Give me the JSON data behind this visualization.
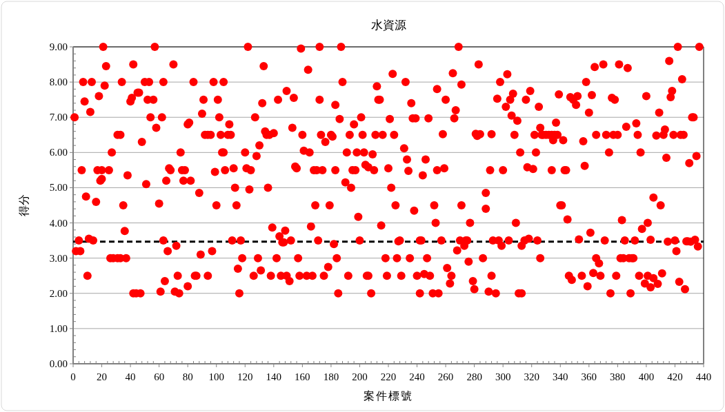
{
  "chart_data": {
    "type": "scatter",
    "title": "水資源",
    "xlabel": "案件標號",
    "ylabel": "得分",
    "series": [
      {
        "color": "#ff0000",
        "x": [
          1,
          2,
          4,
          5,
          6,
          7,
          8,
          9,
          10,
          11,
          12,
          13,
          14,
          16,
          17,
          18,
          19,
          20,
          20,
          21,
          22,
          23,
          25,
          27,
          26,
          28,
          31,
          33,
          31,
          33,
          34,
          35,
          36,
          37,
          38,
          40,
          41,
          42,
          42,
          44,
          45,
          46,
          47,
          48,
          50,
          51,
          52,
          53,
          54,
          56,
          57,
          58,
          60,
          61,
          62,
          63,
          64,
          63,
          65,
          66,
          67,
          68,
          70,
          71,
          72,
          73,
          74,
          75,
          76,
          78,
          77,
          80,
          81,
          80,
          82,
          84,
          85,
          86,
          88,
          89,
          90,
          91,
          92,
          94,
          94,
          96,
          97,
          98,
          99,
          100,
          101,
          102,
          103,
          104,
          105,
          105,
          106,
          108,
          109,
          110,
          111,
          112,
          113,
          114,
          115,
          116,
          117,
          118,
          120,
          121,
          122,
          123,
          124,
          126,
          127,
          128,
          129,
          130,
          131,
          132,
          133,
          134,
          135,
          136,
          137,
          138,
          139,
          140,
          142,
          143,
          144,
          145,
          146,
          147,
          148,
          149,
          149,
          151,
          152,
          153,
          154,
          155,
          156,
          157,
          158,
          159,
          160,
          161,
          163,
          164,
          165,
          166,
          167,
          168,
          169,
          170,
          171,
          172,
          172,
          173,
          174,
          175,
          176,
          178,
          179,
          180,
          181,
          182,
          183,
          183,
          184,
          185,
          186,
          187,
          188,
          190,
          191,
          192,
          193,
          194,
          195,
          196,
          197,
          198,
          199,
          200,
          201,
          202,
          203,
          204,
          205,
          206,
          206,
          208,
          209,
          210,
          211,
          212,
          213,
          214,
          215,
          216,
          218,
          219,
          220,
          221,
          222,
          223,
          224,
          225,
          226,
          227,
          228,
          229,
          231,
          232,
          233,
          234,
          235,
          236,
          237,
          238,
          239,
          240,
          242,
          243,
          242,
          244,
          245,
          246,
          247,
          248,
          249,
          251,
          252,
          253,
          254,
          254,
          255,
          257,
          258,
          259,
          260,
          261,
          263,
          264,
          265,
          266,
          267,
          268,
          269,
          270,
          271,
          271,
          273,
          274,
          275,
          276,
          277,
          279,
          280,
          281,
          282,
          283,
          284,
          286,
          288,
          288,
          290,
          291,
          292,
          292,
          293,
          295,
          296,
          297,
          298,
          299,
          300,
          302,
          303,
          304,
          305,
          306,
          307,
          308,
          309,
          310,
          311,
          312,
          313,
          315,
          313,
          316,
          317,
          318,
          319,
          321,
          322,
          323,
          324,
          325,
          326,
          326,
          327,
          328,
          330,
          332,
          334,
          336,
          338,
          335,
          337,
          342,
          339,
          334,
          343,
          344,
          340,
          341,
          345,
          347,
          349,
          351,
          352,
          353,
          346,
          348,
          355,
          356,
          357,
          358,
          360,
          361,
          362,
          364,
          365,
          359,
          363,
          365,
          367,
          368,
          370,
          371,
          372,
          374,
          375,
          376,
          378,
          377,
          379,
          380,
          381,
          383,
          382,
          384,
          385,
          386,
          387,
          388,
          389,
          390,
          391,
          392,
          393,
          394,
          395,
          396,
          397,
          399,
          400,
          401,
          401,
          403,
          403,
          405,
          405,
          407,
          408,
          409,
          410,
          411,
          412,
          413,
          414,
          415,
          416,
          417,
          418,
          419,
          420,
          421,
          422,
          423,
          424,
          425,
          426,
          427,
          428,
          429,
          430,
          431,
          432,
          433,
          434,
          435,
          436,
          437
        ],
        "values": [
          7.0,
          3.2,
          3.5,
          3.2,
          5.5,
          8.0,
          7.45,
          4.75,
          2.5,
          3.55,
          7.15,
          8.0,
          3.5,
          4.6,
          5.5,
          7.6,
          5.2,
          5.5,
          5.25,
          9.0,
          7.9,
          8.45,
          5.5,
          6.0,
          3.0,
          3.0,
          3.0,
          3.0,
          6.5,
          6.5,
          8.0,
          4.5,
          3.77,
          3.0,
          5.35,
          7.45,
          7.55,
          8.5,
          2.0,
          2.0,
          7.7,
          7.7,
          2.0,
          6.3,
          8.0,
          5.1,
          7.5,
          8.0,
          7.0,
          7.5,
          9.0,
          6.7,
          4.55,
          2.05,
          7.0,
          3.5,
          2.35,
          8.0,
          5.2,
          3.2,
          5.55,
          5.5,
          8.5,
          2.05,
          3.35,
          2.5,
          2.0,
          6.0,
          5.5,
          5.5,
          5.2,
          6.8,
          6.85,
          2.2,
          5.2,
          8.0,
          2.5,
          2.5,
          4.85,
          3.1,
          7.1,
          7.5,
          6.5,
          6.5,
          2.5,
          6.5,
          3.2,
          8.0,
          5.45,
          4.5,
          7.5,
          7.0,
          6.5,
          6.0,
          8.0,
          6.0,
          5.5,
          6.5,
          6.8,
          6.5,
          3.5,
          5.55,
          5.0,
          4.5,
          2.7,
          2.0,
          3.5,
          3.0,
          6.0,
          5.55,
          9.0,
          4.95,
          5.5,
          2.5,
          7.0,
          5.9,
          3.0,
          6.2,
          2.65,
          7.4,
          8.45,
          6.6,
          6.5,
          5.0,
          6.5,
          2.5,
          3.87,
          6.55,
          3.0,
          7.5,
          3.62,
          2.5,
          3.45,
          3.45,
          3.78,
          2.5,
          7.75,
          2.35,
          3.5,
          6.7,
          7.55,
          5.6,
          5.55,
          3.0,
          2.5,
          8.95,
          6.5,
          6.05,
          2.5,
          8.35,
          6.0,
          3.9,
          2.5,
          5.5,
          4.5,
          5.5,
          3.5,
          7.5,
          9.0,
          6.5,
          5.5,
          2.5,
          6.3,
          2.75,
          4.5,
          6.5,
          6.45,
          3.4,
          5.5,
          7.35,
          3.0,
          2.0,
          6.95,
          9.0,
          8.0,
          5.15,
          6.0,
          2.5,
          6.5,
          5.0,
          5.5,
          6.8,
          5.5,
          6.0,
          4.17,
          3.5,
          7.0,
          6.5,
          6.0,
          5.65,
          2.5,
          2.5,
          5.58,
          2.0,
          5.95,
          5.5,
          6.5,
          7.88,
          7.5,
          7.5,
          3.93,
          6.5,
          3.0,
          2.5,
          5.55,
          6.95,
          5.0,
          8.23,
          6.5,
          4.5,
          3.0,
          3.48,
          3.5,
          2.5,
          6.12,
          8.0,
          5.8,
          5.48,
          3.0,
          7.4,
          6.97,
          4.35,
          6.97,
          2.5,
          3.5,
          3.5,
          2.0,
          5.35,
          2.55,
          5.8,
          3.0,
          6.97,
          2.5,
          2.0,
          4.5,
          4.0,
          5.5,
          7.8,
          2.0,
          3.5,
          6.52,
          5.55,
          7.5,
          2.72,
          2.28,
          2.5,
          8.25,
          6.97,
          7.2,
          3.22,
          9.0,
          3.5,
          4.5,
          7.93,
          3.35,
          3.5,
          3.5,
          2.9,
          4.0,
          2.35,
          2.12,
          6.53,
          6.47,
          8.5,
          6.52,
          3.0,
          4.85,
          4.4,
          2.05,
          5.5,
          2.5,
          6.52,
          3.5,
          2.0,
          7.53,
          3.5,
          8.0,
          3.35,
          5.5,
          7.3,
          8.22,
          3.5,
          7.5,
          7.05,
          7.67,
          6.5,
          4.0,
          6.9,
          2.0,
          6.0,
          3.35,
          3.5,
          2.0,
          7.5,
          5.58,
          3.55,
          7.75,
          5.53,
          6.5,
          6.0,
          3.5,
          7.3,
          3.0,
          6.7,
          6.5,
          6.5,
          6.5,
          6.5,
          6.5,
          6.5,
          6.5,
          6.35,
          6.85,
          6.35,
          7.65,
          5.5,
          5.5,
          5.5,
          4.5,
          4.5,
          4.1,
          7.57,
          7.5,
          7.35,
          7.6,
          3.53,
          2.5,
          2.38,
          2.5,
          6.32,
          5.62,
          8.0,
          7.13,
          3.72,
          7.63,
          8.43,
          6.5,
          2.2,
          2.58,
          3.0,
          2.85,
          2.5,
          8.5,
          3.5,
          6.5,
          6.0,
          2.0,
          7.55,
          7.5,
          6.5,
          2.5,
          6.5,
          8.5,
          4.08,
          3.0,
          3.0,
          3.5,
          6.73,
          8.4,
          3.0,
          2.0,
          3.0,
          3.0,
          3.5,
          6.83,
          6.5,
          2.5,
          6.0,
          3.83,
          2.28,
          7.6,
          4.0,
          2.5,
          3.52,
          2.17,
          4.72,
          2.43,
          6.48,
          2.27,
          7.13,
          4.5,
          2.57,
          6.5,
          6.65,
          5.85,
          3.47,
          8.6,
          7.57,
          7.75,
          6.5,
          3.5,
          3.2,
          9.0,
          2.33,
          6.5,
          8.08,
          6.5,
          2.12,
          3.48,
          3.48,
          5.7,
          3.47,
          7.0,
          7.0,
          3.52,
          5.9,
          3.33,
          9.0
        ]
      }
    ],
    "xlim": [
      0,
      440
    ],
    "xticks": [
      0,
      20,
      40,
      60,
      80,
      100,
      120,
      140,
      160,
      180,
      200,
      220,
      240,
      260,
      280,
      300,
      320,
      340,
      360,
      380,
      400,
      420,
      440
    ],
    "ylim": [
      0,
      9
    ],
    "yticks": [
      {
        "value": 0,
        "label": "0.00"
      },
      {
        "value": 1,
        "label": "1.00"
      },
      {
        "value": 2,
        "label": "2.00"
      },
      {
        "value": 3,
        "label": "3.00"
      },
      {
        "value": 4,
        "label": "4.00"
      },
      {
        "value": 5,
        "label": "5.00"
      },
      {
        "value": 6,
        "label": "6.00"
      },
      {
        "value": 7,
        "label": "7.00"
      },
      {
        "value": 8,
        "label": "8.00"
      },
      {
        "value": 9,
        "label": "9.00"
      }
    ],
    "grid": "y",
    "marker": "circle",
    "ref_lines": [
      {
        "axis": "y",
        "value": 3.47,
        "color": "#000000",
        "line_style": "dashed"
      }
    ]
  }
}
